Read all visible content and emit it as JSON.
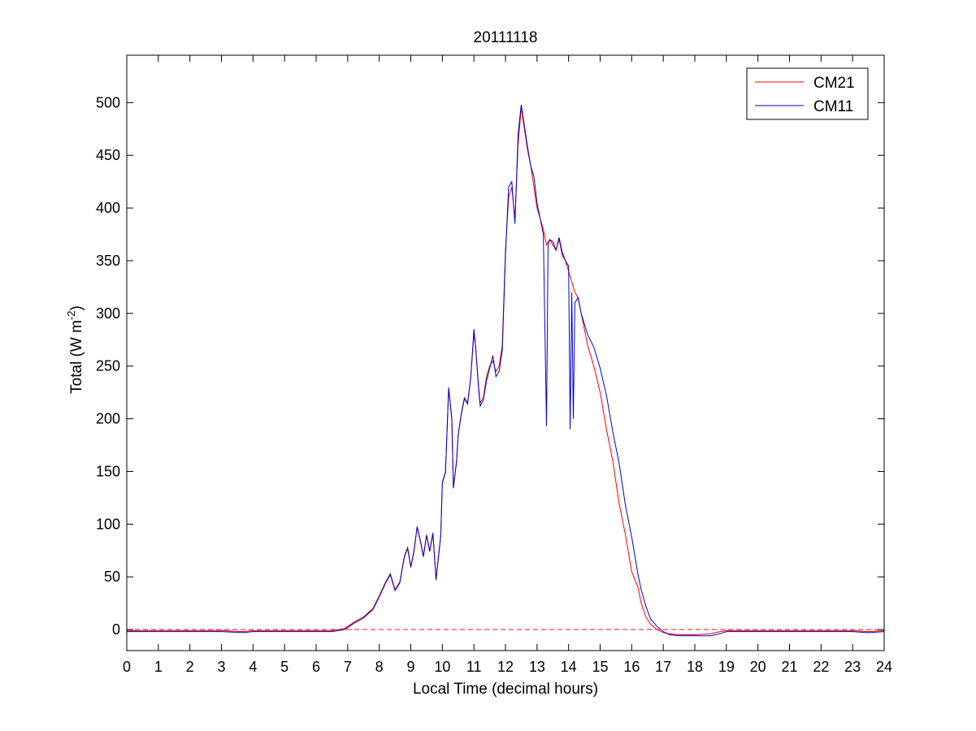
{
  "chart_data": {
    "type": "line",
    "title": "20111118",
    "xlabel": "Local Time (decimal hours)",
    "ylabel": {
      "main": "Total (W m",
      "sup": "-2",
      "close": ")"
    },
    "xlim": [
      0,
      24
    ],
    "ylim": [
      -20,
      545
    ],
    "xticks": [
      0,
      1,
      2,
      3,
      4,
      5,
      6,
      7,
      8,
      9,
      10,
      11,
      12,
      13,
      14,
      15,
      16,
      17,
      18,
      19,
      20,
      21,
      22,
      23,
      24
    ],
    "yticks": [
      0,
      50,
      100,
      150,
      200,
      250,
      300,
      350,
      400,
      450,
      500
    ],
    "grid": false,
    "legend_position": "top-right",
    "reference_line": {
      "y": 0,
      "style": "dashed",
      "color": "#e41a1c"
    },
    "series": [
      {
        "name": "CM21",
        "color": "#ff0000",
        "x": [
          0,
          1,
          2,
          3,
          3.7,
          4,
          5,
          6,
          6.5,
          6.9,
          7.2,
          7.5,
          7.8,
          8.0,
          8.2,
          8.35,
          8.5,
          8.65,
          8.8,
          8.9,
          9.0,
          9.1,
          9.2,
          9.3,
          9.4,
          9.5,
          9.6,
          9.7,
          9.8,
          9.95,
          10.0,
          10.1,
          10.2,
          10.3,
          10.35,
          10.45,
          10.5,
          10.6,
          10.7,
          10.8,
          10.9,
          11.0,
          11.05,
          11.15,
          11.2,
          11.3,
          11.4,
          11.5,
          11.6,
          11.7,
          11.8,
          11.9,
          12.0,
          12.1,
          12.2,
          12.3,
          12.4,
          12.5,
          12.6,
          12.7,
          12.8,
          12.9,
          13.0,
          13.1,
          13.2,
          13.3,
          13.4,
          13.5,
          13.6,
          13.7,
          13.8,
          13.9,
          14.0,
          14.1,
          14.2,
          14.3,
          14.4,
          14.5,
          14.6,
          14.8,
          15.0,
          15.2,
          15.4,
          15.6,
          15.8,
          16.0,
          16.2,
          16.3,
          16.45,
          16.6,
          16.8,
          17.0,
          17.2,
          17.5,
          18.0,
          18.5,
          18.8,
          19.0,
          19.5,
          20,
          21,
          22,
          23,
          23.5,
          24
        ],
        "y": [
          -1,
          -1,
          -1,
          -1,
          -2,
          -1,
          -1,
          -1,
          -1,
          1,
          7,
          12,
          20,
          32,
          45,
          53,
          38,
          45,
          70,
          78,
          60,
          75,
          98,
          85,
          70,
          90,
          75,
          92,
          48,
          90,
          140,
          150,
          230,
          200,
          135,
          160,
          185,
          205,
          220,
          215,
          240,
          280,
          270,
          230,
          215,
          220,
          240,
          250,
          255,
          245,
          250,
          270,
          360,
          410,
          420,
          390,
          460,
          495,
          475,
          455,
          440,
          420,
          400,
          390,
          380,
          365,
          370,
          365,
          360,
          370,
          355,
          350,
          340,
          330,
          320,
          315,
          300,
          285,
          270,
          250,
          225,
          190,
          160,
          120,
          90,
          55,
          40,
          25,
          12,
          5,
          0,
          -3,
          -4,
          -5,
          -5,
          -4,
          -2,
          -1,
          -1,
          -1,
          -1,
          -1,
          -1,
          -2,
          -1
        ]
      },
      {
        "name": "CM11",
        "color": "#0000cc",
        "x": [
          0,
          1,
          2,
          3,
          3.7,
          4,
          5,
          6,
          6.5,
          6.9,
          7.2,
          7.5,
          7.8,
          8.0,
          8.2,
          8.35,
          8.5,
          8.65,
          8.8,
          8.9,
          9.0,
          9.1,
          9.2,
          9.3,
          9.4,
          9.5,
          9.6,
          9.7,
          9.8,
          9.95,
          10.0,
          10.1,
          10.2,
          10.3,
          10.35,
          10.45,
          10.5,
          10.6,
          10.7,
          10.8,
          10.9,
          11.0,
          11.05,
          11.15,
          11.2,
          11.3,
          11.4,
          11.5,
          11.6,
          11.7,
          11.8,
          11.9,
          12.0,
          12.1,
          12.2,
          12.3,
          12.4,
          12.5,
          12.6,
          12.7,
          12.8,
          12.9,
          13.0,
          13.1,
          13.2,
          13.3,
          13.35,
          13.4,
          13.5,
          13.6,
          13.7,
          13.8,
          13.9,
          14.0,
          14.05,
          14.1,
          14.15,
          14.2,
          14.3,
          14.4,
          14.5,
          14.6,
          14.8,
          15.0,
          15.2,
          15.4,
          15.6,
          15.8,
          16.0,
          16.2,
          16.3,
          16.45,
          16.6,
          16.8,
          17.0,
          17.2,
          17.5,
          18.0,
          18.5,
          18.8,
          19.0,
          19.5,
          20,
          21,
          22,
          23,
          23.5,
          24
        ],
        "y": [
          -2,
          -2,
          -2,
          -2,
          -3,
          -2,
          -2,
          -2,
          -2,
          0,
          6,
          11,
          19,
          31,
          44,
          52,
          37,
          44,
          69,
          77,
          59,
          74,
          97,
          84,
          69,
          89,
          74,
          91,
          47,
          89,
          139,
          149,
          229,
          199,
          134,
          159,
          184,
          204,
          219,
          214,
          239,
          285,
          270,
          228,
          212,
          218,
          236,
          248,
          260,
          240,
          245,
          265,
          355,
          420,
          425,
          385,
          470,
          498,
          478,
          458,
          440,
          430,
          405,
          390,
          375,
          193,
          365,
          370,
          368,
          360,
          372,
          358,
          350,
          345,
          190,
          320,
          200,
          310,
          315,
          300,
          290,
          280,
          268,
          248,
          222,
          188,
          158,
          118,
          88,
          52,
          38,
          22,
          10,
          3,
          -2,
          -5,
          -6,
          -6,
          -6,
          -4,
          -2,
          -2,
          -2,
          -2,
          -2,
          -2,
          -3,
          -2
        ]
      }
    ]
  }
}
